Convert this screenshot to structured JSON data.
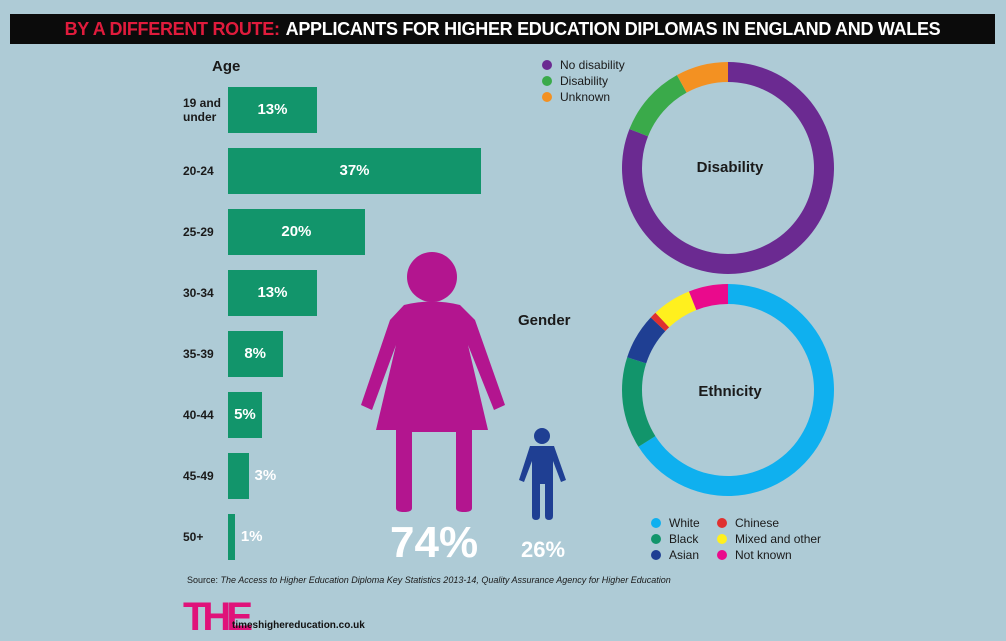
{
  "banner": {
    "kicker": "BY A DIFFERENT ROUTE:",
    "headline": "APPLICANTS FOR HIGHER EDUCATION DIPLOMAS IN ENGLAND AND WALES"
  },
  "colors": {
    "background": "#aecbd6",
    "bar": "#12956b",
    "female": "#b3158f",
    "male": "#1f3f93"
  },
  "source": {
    "prefix": "Source:",
    "text": "The Access to Higher Education Diploma Key Statistics 2013-14, Quality Assurance Agency for Higher Education"
  },
  "footer": {
    "logo": "THE",
    "url": "timeshighereducation.co.uk"
  },
  "chart_data": [
    {
      "type": "bar",
      "orientation": "horizontal",
      "title": "Age",
      "categories": [
        "19 and under",
        "20-24",
        "25-29",
        "30-34",
        "35-39",
        "40-44",
        "45-49",
        "50+"
      ],
      "values": [
        13,
        37,
        20,
        13,
        8,
        5,
        3,
        1
      ],
      "value_labels": [
        "13%",
        "37%",
        "20%",
        "13%",
        "8%",
        "5%",
        "3%",
        "1%"
      ],
      "unit": "%",
      "xlim": [
        0,
        37
      ]
    },
    {
      "type": "pictograph",
      "title": "Gender",
      "categories": [
        "Female",
        "Male"
      ],
      "values": [
        74,
        26
      ],
      "value_labels": [
        "74%",
        "26%"
      ],
      "colors": [
        "#b3158f",
        "#1f3f93"
      ]
    },
    {
      "type": "pie",
      "donut": true,
      "title": "Disability",
      "legend_position": "top-left",
      "categories": [
        "No disability",
        "Disability",
        "Unknown"
      ],
      "values": [
        81,
        11,
        8
      ],
      "colors": [
        "#6b2a91",
        "#3aaa4a",
        "#f39122"
      ]
    },
    {
      "type": "pie",
      "donut": true,
      "title": "Ethnicity",
      "legend_position": "bottom",
      "categories": [
        "White",
        "Black",
        "Asian",
        "Chinese",
        "Mixed and other",
        "Not known"
      ],
      "values": [
        66,
        14,
        7,
        1,
        6,
        6
      ],
      "colors": [
        "#0fb0ef",
        "#12956b",
        "#1f3f93",
        "#e0302f",
        "#fff01e",
        "#ea0a8c"
      ]
    }
  ]
}
